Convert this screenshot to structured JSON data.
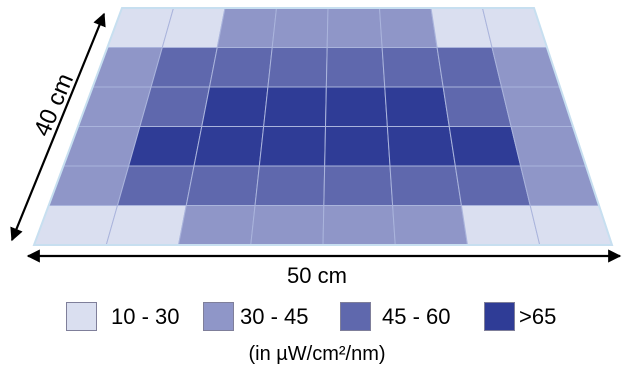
{
  "width_label": "50 cm",
  "depth_label": "40 cm",
  "units_label": "(in µW/cm²/nm)",
  "colors": {
    "level1": "#dadff0",
    "level2": "#8f96c8",
    "level3": "#5f68ad",
    "level4": "#2f3c96",
    "grid_line": "#aab4dc",
    "border": "#c7dff0",
    "arrow": "#000000"
  },
  "grid": {
    "rows": 6,
    "cols": 8,
    "levels": [
      [
        1,
        1,
        2,
        2,
        2,
        2,
        1,
        1
      ],
      [
        2,
        3,
        3,
        3,
        3,
        3,
        3,
        2
      ],
      [
        2,
        3,
        4,
        4,
        4,
        4,
        3,
        2
      ],
      [
        2,
        4,
        4,
        4,
        4,
        4,
        4,
        2
      ],
      [
        2,
        3,
        3,
        3,
        3,
        3,
        3,
        2
      ],
      [
        1,
        1,
        2,
        2,
        2,
        2,
        1,
        1
      ]
    ]
  },
  "legend": [
    {
      "label": "10 - 30",
      "color": "#dadff0"
    },
    {
      "label": "30 - 45",
      "color": "#8f96c8"
    },
    {
      "label": "45 - 60",
      "color": "#5f68ad"
    },
    {
      "label": ">65",
      "color": "#2f3c96"
    }
  ]
}
